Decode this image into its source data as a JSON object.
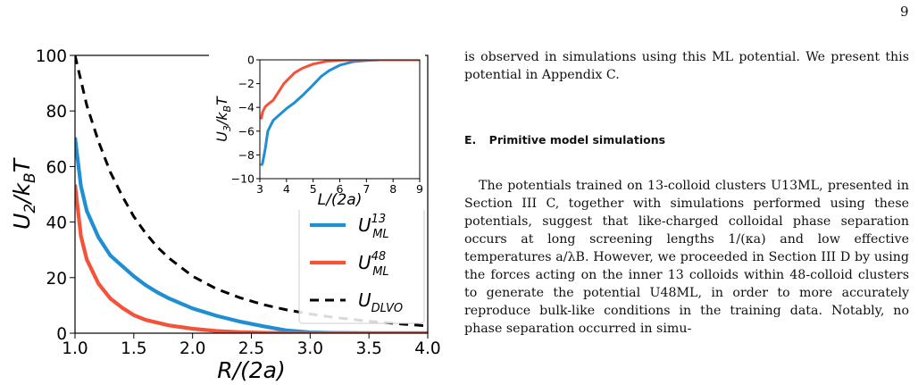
{
  "page_number": "9",
  "colors": {
    "u13": "#1f8fd4",
    "u48": "#f4533a",
    "dlvo": "#000000"
  },
  "chart_data": {
    "main": {
      "type": "line",
      "xlabel": "R/(2a)",
      "ylabel": "U2/kBT",
      "xlim": [
        1.0,
        4.0
      ],
      "ylim": [
        0,
        100
      ],
      "xticks": [
        1.0,
        1.5,
        2.0,
        2.5,
        3.0,
        3.5,
        4.0
      ],
      "yticks": [
        0,
        20,
        40,
        60,
        80,
        100
      ],
      "xtick_labels": [
        "1.0",
        "1.5",
        "2.0",
        "2.5",
        "3.0",
        "3.5",
        "4.0"
      ],
      "ytick_labels": [
        "0",
        "20",
        "40",
        "60",
        "80",
        "100"
      ],
      "legend_position": "bottom-right",
      "series": [
        {
          "name": "U_ML^13",
          "color": "#1f8fd4",
          "style": "solid",
          "x": [
            1.0,
            1.05,
            1.1,
            1.2,
            1.3,
            1.4,
            1.5,
            1.6,
            1.7,
            1.8,
            2.0,
            2.2,
            2.4,
            2.6,
            2.8,
            3.0,
            3.2,
            3.5,
            4.0
          ],
          "y": [
            70.5,
            53,
            44,
            34.5,
            28,
            24.2,
            20.5,
            17.3,
            14.7,
            12.5,
            8.9,
            6.3,
            4.2,
            2.5,
            1.0,
            0.3,
            0.1,
            0.0,
            0.0
          ]
        },
        {
          "name": "U_ML^48",
          "color": "#f4533a",
          "style": "solid",
          "x": [
            1.0,
            1.05,
            1.1,
            1.2,
            1.3,
            1.4,
            1.5,
            1.6,
            1.8,
            2.0,
            2.2,
            2.4,
            2.6,
            2.8,
            3.0,
            3.5,
            4.0
          ],
          "y": [
            53.5,
            35,
            26.5,
            17.8,
            12.5,
            9.2,
            6.5,
            4.8,
            2.8,
            1.6,
            0.8,
            0.35,
            0.15,
            0.05,
            0.0,
            0.0,
            0.0
          ]
        },
        {
          "name": "U_DLVO",
          "color": "#000000",
          "style": "dashed",
          "x": [
            1.0,
            1.1,
            1.2,
            1.3,
            1.4,
            1.5,
            1.6,
            1.7,
            1.8,
            2.0,
            2.2,
            2.4,
            2.6,
            2.8,
            3.0,
            3.2,
            3.5,
            3.8,
            4.0
          ],
          "y": [
            100,
            82,
            69,
            58,
            49.5,
            42,
            36,
            31,
            27,
            20.5,
            16,
            12.8,
            10.3,
            8.4,
            6.9,
            5.7,
            4.3,
            3.2,
            2.6
          ]
        }
      ]
    },
    "inset": {
      "type": "line",
      "xlabel": "L/(2a)",
      "ylabel": "U3/kBT",
      "xlim": [
        3,
        9
      ],
      "ylim": [
        -10,
        0
      ],
      "xticks": [
        3,
        4,
        5,
        6,
        7,
        8,
        9
      ],
      "yticks": [
        0,
        -2,
        -4,
        -6,
        -8,
        -10
      ],
      "xtick_labels": [
        "3",
        "4",
        "5",
        "6",
        "7",
        "8",
        "9"
      ],
      "ytick_labels": [
        "0",
        "−2",
        "−4",
        "−6",
        "−8",
        "−10"
      ],
      "series": [
        {
          "color": "#1f8fd4",
          "x": [
            3.05,
            3.1,
            3.2,
            3.3,
            3.5,
            3.8,
            4.0,
            4.3,
            4.6,
            5.0,
            5.3,
            5.6,
            6.0,
            6.5,
            7.0,
            7.5,
            8.0,
            9.0
          ],
          "y": [
            -8.9,
            -8.7,
            -7.5,
            -6.0,
            -5.1,
            -4.5,
            -4.1,
            -3.6,
            -3.0,
            -2.1,
            -1.4,
            -0.9,
            -0.45,
            -0.15,
            -0.05,
            0.0,
            0.0,
            0.0
          ]
        },
        {
          "color": "#f4533a",
          "x": [
            3.05,
            3.1,
            3.2,
            3.3,
            3.5,
            3.7,
            3.9,
            4.1,
            4.3,
            4.6,
            5.0,
            5.5,
            6.0,
            6.5,
            7.0,
            8.0,
            9.0
          ],
          "y": [
            -5.0,
            -4.4,
            -3.95,
            -3.75,
            -3.4,
            -2.7,
            -2.0,
            -1.55,
            -1.1,
            -0.7,
            -0.35,
            -0.12,
            -0.04,
            0.0,
            0.0,
            0.0,
            0.0
          ]
        }
      ]
    }
  },
  "figure_labels": {
    "main_x_label": "R/(2a)",
    "main_y_U": "U",
    "main_y_sub": "2",
    "main_y_over": "/k",
    "main_y_sub2": "B",
    "main_y_T": "T",
    "inset_x_label": "L/(2a)",
    "inset_y_U": "U",
    "inset_y_sub": "3",
    "inset_y_over": "/k",
    "inset_y_sub2": "B",
    "inset_y_T": "T",
    "legend": [
      {
        "base": "U",
        "sub": "ML",
        "sup": "13"
      },
      {
        "base": "U",
        "sub": "ML",
        "sup": "48"
      },
      {
        "base": "U",
        "sub": "DLVO",
        "sup": ""
      }
    ]
  },
  "text": {
    "para1": "is observed in simulations using this ML potential. We present this potential in Appendix C.",
    "section_label": "E.",
    "section_title": "Primitive model simulations",
    "para2": "The potentials trained on 13-colloid clusters U13ML, presented in Section III C, together with simulations performed using these potentials, suggest that like-charged colloidal phase separation occurs at long screening lengths 1/(κa) and low effective temperatures a/λB. However, we proceeded in Section III D by using the forces acting on the inner 13 colloids within 48-colloid clusters to generate the potential U48ML, in order to more accurately reproduce bulk-like conditions in the training data. Notably, no phase separation occurred in simu-"
  }
}
